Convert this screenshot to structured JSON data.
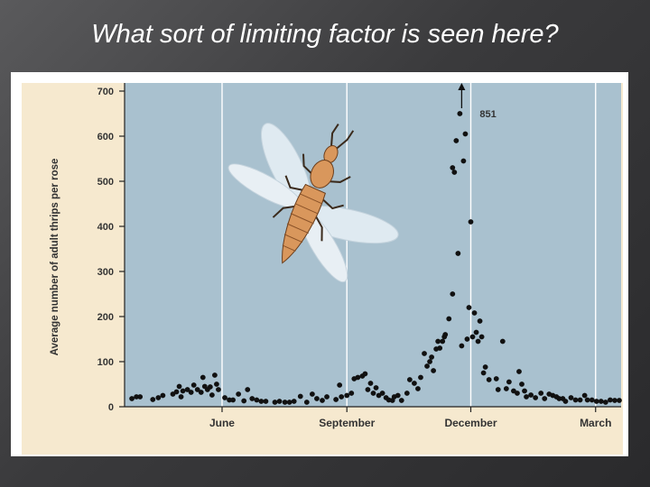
{
  "slide": {
    "title": "What sort of limiting factor is seen here?"
  },
  "colors": {
    "background": "#4a4a4c",
    "chart_frame": "#f6e9cf",
    "plot_area": "#a9c1cf",
    "grid": "#ffffff",
    "points": "#111111",
    "insect_body": "#d9975c",
    "insect_wings": "#dfeaf1"
  },
  "illustration": {
    "icon": "thrips-insect-icon"
  },
  "chart_data": {
    "type": "scatter",
    "title": "",
    "xlabel": "",
    "ylabel": "Average number of adult thrips per rose",
    "ylim": [
      0,
      700
    ],
    "yticks": [
      0,
      100,
      200,
      300,
      400,
      500,
      600,
      700
    ],
    "xlim": [
      0,
      545
    ],
    "xticks": [
      {
        "label": "June",
        "x": 107
      },
      {
        "label": "September",
        "x": 244
      },
      {
        "label": "December",
        "x": 380
      },
      {
        "label": "March",
        "x": 517
      }
    ],
    "grid": true,
    "annotations": [
      {
        "text": "851",
        "x": 370,
        "y": 851,
        "note": "arrow off scale"
      }
    ],
    "series": [
      {
        "points": [
          [
            8,
            18
          ],
          [
            13,
            22
          ],
          [
            17,
            22
          ],
          [
            31,
            16
          ],
          [
            37,
            20
          ],
          [
            42,
            25
          ],
          [
            53,
            28
          ],
          [
            57,
            33
          ],
          [
            60,
            45
          ],
          [
            62,
            22
          ],
          [
            64,
            35
          ],
          [
            69,
            38
          ],
          [
            73,
            32
          ],
          [
            76,
            48
          ],
          [
            80,
            38
          ],
          [
            84,
            32
          ],
          [
            86,
            65
          ],
          [
            88,
            45
          ],
          [
            91,
            38
          ],
          [
            94,
            44
          ],
          [
            96,
            26
          ],
          [
            99,
            70
          ],
          [
            101,
            50
          ],
          [
            103,
            38
          ],
          [
            110,
            20
          ],
          [
            115,
            15
          ],
          [
            119,
            15
          ],
          [
            125,
            28
          ],
          [
            131,
            13
          ],
          [
            135,
            38
          ],
          [
            140,
            18
          ],
          [
            145,
            15
          ],
          [
            150,
            12
          ],
          [
            155,
            12
          ],
          [
            165,
            10
          ],
          [
            170,
            12
          ],
          [
            176,
            10
          ],
          [
            181,
            10
          ],
          [
            186,
            12
          ],
          [
            193,
            23
          ],
          [
            200,
            10
          ],
          [
            206,
            28
          ],
          [
            211,
            18
          ],
          [
            217,
            14
          ],
          [
            222,
            22
          ],
          [
            232,
            16
          ],
          [
            236,
            48
          ],
          [
            238,
            22
          ],
          [
            244,
            25
          ],
          [
            249,
            30
          ],
          [
            252,
            62
          ],
          [
            256,
            65
          ],
          [
            261,
            68
          ],
          [
            264,
            73
          ],
          [
            267,
            38
          ],
          [
            270,
            52
          ],
          [
            273,
            30
          ],
          [
            276,
            42
          ],
          [
            279,
            25
          ],
          [
            283,
            30
          ],
          [
            287,
            20
          ],
          [
            290,
            15
          ],
          [
            294,
            14
          ],
          [
            296,
            22
          ],
          [
            300,
            25
          ],
          [
            304,
            14
          ],
          [
            310,
            30
          ],
          [
            313,
            60
          ],
          [
            318,
            52
          ],
          [
            322,
            40
          ],
          [
            325,
            65
          ],
          [
            329,
            118
          ],
          [
            332,
            90
          ],
          [
            335,
            100
          ],
          [
            337,
            110
          ],
          [
            339,
            80
          ],
          [
            342,
            128
          ],
          [
            344,
            145
          ],
          [
            346,
            130
          ],
          [
            349,
            145
          ],
          [
            351,
            155
          ],
          [
            352,
            160
          ],
          [
            356,
            195
          ],
          [
            360,
            530
          ],
          [
            360,
            250
          ],
          [
            362,
            520
          ],
          [
            364,
            590
          ],
          [
            366,
            340
          ],
          [
            368,
            650
          ],
          [
            370,
            135
          ],
          [
            372,
            545
          ],
          [
            374,
            605
          ],
          [
            376,
            150
          ],
          [
            378,
            220
          ],
          [
            380,
            410
          ],
          [
            382,
            155
          ],
          [
            384,
            208
          ],
          [
            386,
            165
          ],
          [
            388,
            145
          ],
          [
            390,
            190
          ],
          [
            392,
            155
          ],
          [
            394,
            75
          ],
          [
            396,
            88
          ],
          [
            400,
            60
          ],
          [
            408,
            62
          ],
          [
            410,
            38
          ],
          [
            415,
            145
          ],
          [
            419,
            40
          ],
          [
            422,
            55
          ],
          [
            427,
            35
          ],
          [
            431,
            30
          ],
          [
            433,
            78
          ],
          [
            436,
            50
          ],
          [
            439,
            35
          ],
          [
            441,
            22
          ],
          [
            446,
            26
          ],
          [
            451,
            20
          ],
          [
            457,
            30
          ],
          [
            461,
            18
          ],
          [
            466,
            28
          ],
          [
            470,
            25
          ],
          [
            474,
            22
          ],
          [
            477,
            18
          ],
          [
            481,
            18
          ],
          [
            484,
            12
          ],
          [
            490,
            20
          ],
          [
            495,
            15
          ],
          [
            500,
            15
          ],
          [
            505,
            25
          ],
          [
            508,
            15
          ],
          [
            513,
            15
          ],
          [
            518,
            12
          ],
          [
            523,
            12
          ],
          [
            528,
            10
          ],
          [
            533,
            15
          ],
          [
            538,
            14
          ],
          [
            543,
            14
          ]
        ]
      }
    ]
  }
}
